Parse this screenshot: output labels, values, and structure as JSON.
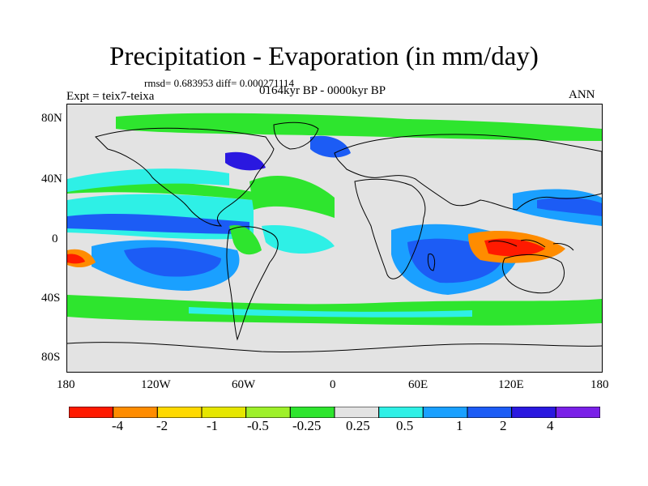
{
  "title": "Precipitation - Evaporation (in mm/day)",
  "stats": "rmsd= 0.683953 diff= 0.000271114",
  "period": "0164kyr BP - 0000kyr BP",
  "expt": "Expt = teix7-teixa",
  "season": "ANN",
  "y_ticks": [
    "80N",
    "40N",
    "0",
    "40S",
    "80S"
  ],
  "x_ticks": [
    "180",
    "120W",
    "60W",
    "0",
    "60E",
    "120E",
    "180"
  ],
  "colorbar": {
    "labels": [
      "-4",
      "-2",
      "-1",
      "-0.5",
      "-0.25",
      "0.25",
      "0.5",
      "1",
      "2",
      "4"
    ],
    "colors": [
      "#ff1a00",
      "#ff8c00",
      "#ffd900",
      "#e6e600",
      "#9ef02a",
      "#2ee52e",
      "#e3e3e3",
      "#2ef0e6",
      "#1aa0ff",
      "#1c5cf5",
      "#2a18e0",
      "#7a20e8"
    ]
  }
}
